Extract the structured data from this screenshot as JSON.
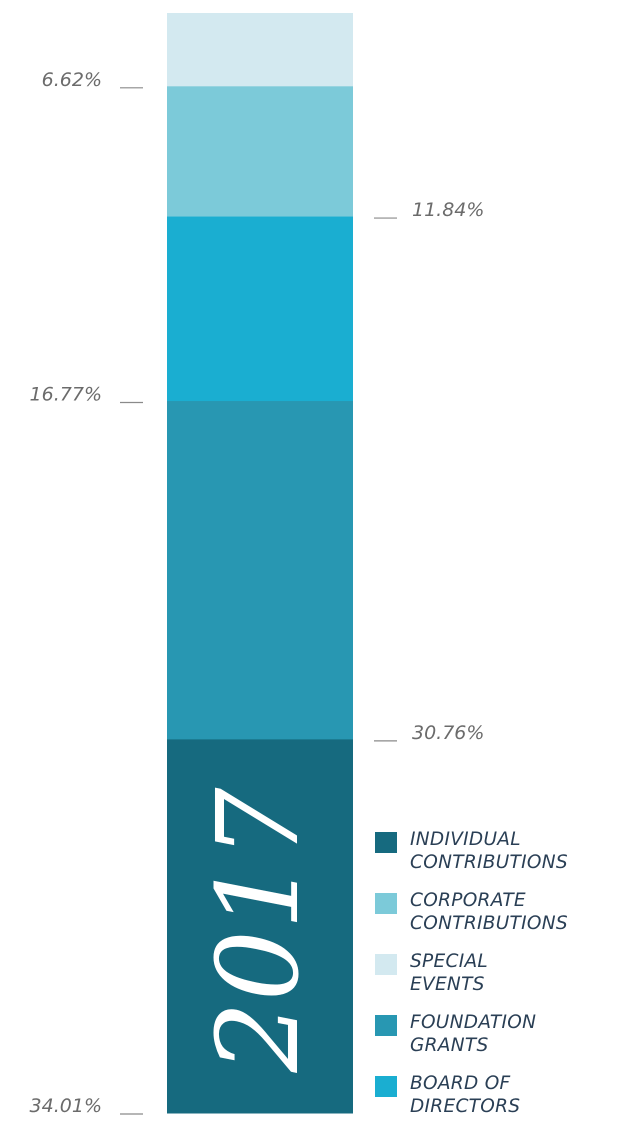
{
  "chart_data": {
    "type": "bar",
    "stacked": true,
    "categories": [
      "2017"
    ],
    "year_label": "2017",
    "series": [
      {
        "name": "INDIVIDUAL CONTRIBUTIONS",
        "value": 34.01,
        "label": "34.01%",
        "color": "#166a7f",
        "label_side": "left"
      },
      {
        "name": "FOUNDATION GRANTS",
        "value": 30.76,
        "label": "30.76%",
        "color": "#2897b2",
        "label_side": "right"
      },
      {
        "name": "BOARD OF DIRECTORS",
        "value": 16.77,
        "label": "16.77%",
        "color": "#1aaed1",
        "label_side": "left"
      },
      {
        "name": "CORPORATE CONTRIBUTIONS",
        "value": 11.84,
        "label": "11.84%",
        "color": "#7ccad9",
        "label_side": "right"
      },
      {
        "name": "SPECIAL EVENTS",
        "value": 6.62,
        "label": "6.62%",
        "color": "#d3e9f0",
        "label_side": "left"
      }
    ],
    "legend": [
      {
        "label": "INDIVIDUAL\nCONTRIBUTIONS",
        "color": "#166a7f"
      },
      {
        "label": "CORPORATE\nCONTRIBUTIONS",
        "color": "#7ccad9"
      },
      {
        "label": "SPECIAL\nEVENTS",
        "color": "#d3e9f0"
      },
      {
        "label": "FOUNDATION\nGRANTS",
        "color": "#2897b2"
      },
      {
        "label": "BOARD OF\nDIRECTORS",
        "color": "#1aaed1"
      }
    ],
    "legend_position": "bottom-right"
  }
}
